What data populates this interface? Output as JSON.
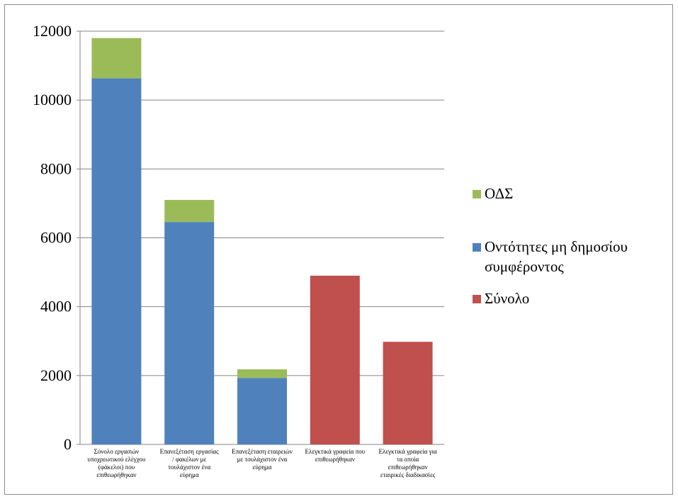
{
  "chart_data": {
    "type": "bar",
    "stacked": true,
    "categories": [
      [
        "Σύνολο εργασιών",
        "υποχρεωτικού ελέγχου",
        "(φάκελοι) που",
        "επιθεωρήθηκαν"
      ],
      [
        "Επανεξέταση εργασίας",
        "/ φακέλων με",
        "τουλάχιστον ένα",
        "εύρημα"
      ],
      [
        "Επανεξέταση εταιρειών",
        "με τουλάχιστον ένα",
        "εύρημα"
      ],
      [
        "Ελεγκτικά γραφεία που",
        "επιθεωρήθηκαν"
      ],
      [
        "Ελεγκτικά γραφεία  για",
        "τα οποία",
        "επιθεωρήθηκαν",
        "εταιρικές διαδικασίες"
      ]
    ],
    "series": [
      {
        "name": "Οντότητες μη δημοσίου συμφέροντος",
        "legend_lines": [
          "Οντότητες μη δημοσίου",
          "συμφέροντος"
        ],
        "color": "#4f81bd",
        "values": [
          10630,
          6460,
          1930,
          null,
          null
        ]
      },
      {
        "name": "ΟΔΣ",
        "legend_lines": [
          "ΟΔΣ"
        ],
        "color": "#9bbb59",
        "values": [
          1170,
          640,
          250,
          null,
          null
        ]
      },
      {
        "name": "Σύνολο",
        "legend_lines": [
          "Σύνολο"
        ],
        "color": "#c0504d",
        "values": [
          null,
          null,
          null,
          4900,
          2980
        ]
      }
    ],
    "legend_order": [
      1,
      0,
      2
    ],
    "title": "",
    "xlabel": "",
    "ylabel": "",
    "ylim": [
      0,
      12000
    ],
    "yticks": [
      "0",
      "2000",
      "4000",
      "6000",
      "8000",
      "10000",
      "12000"
    ],
    "grid": true,
    "legend_position": "right"
  }
}
